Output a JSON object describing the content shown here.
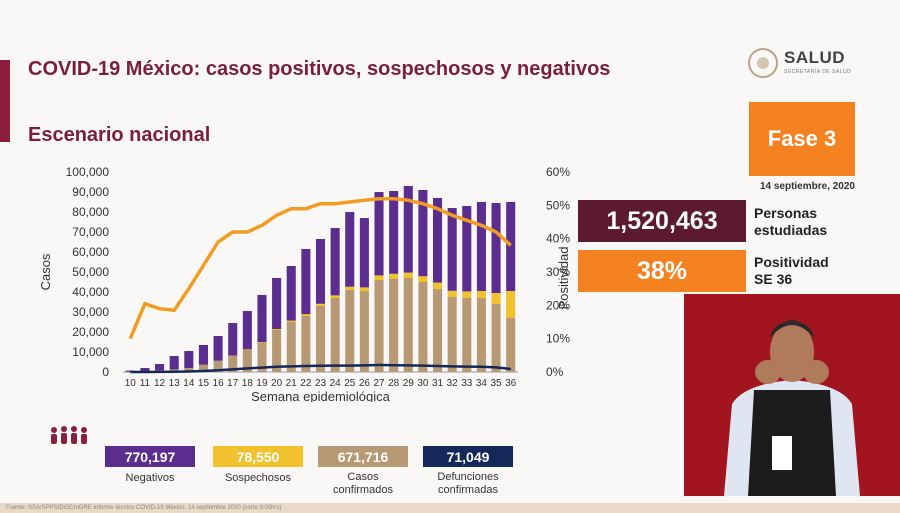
{
  "header": {
    "title": "COVID-19 México: casos positivos, sospechosos y negativos",
    "subtitle": "Escenario nacional",
    "logo_text": "SALUD",
    "logo_subtext": "SECRETARÍA DE SALUD"
  },
  "phase": {
    "label": "Fase 3",
    "date": "14 septiembre, 2020"
  },
  "kpis": [
    {
      "value": "1,520,463",
      "label": "Personas\nestudiadas"
    },
    {
      "value": "38%",
      "label": "Positividad\nSE 36"
    }
  ],
  "legend": [
    {
      "value": "770,197",
      "label": "Negativos",
      "color": "#5b2d8e"
    },
    {
      "value": "78,550",
      "label": "Sospechosos",
      "color": "#f2c12e"
    },
    {
      "value": "671,716",
      "label": "Casos\nconfirmados",
      "color": "#b79a73"
    },
    {
      "value": "71,049",
      "label": "Defunciones\nconfirmadas",
      "color": "#14285a"
    }
  ],
  "footer": "Fuente: SSA/SPPS/DGE/InDRE Informe técnico COVID-19 México. 14 septiembre 2020 (corte 9:00hrs)",
  "chart_data": {
    "type": "bar",
    "stacked": true,
    "xlabel": "Semana epidemiológica",
    "ylabel": "Casos",
    "y2label": "Positividad",
    "ylim": [
      0,
      100000
    ],
    "y2lim": [
      0,
      60
    ],
    "yticks": [
      "0",
      "10,000",
      "20,000",
      "30,000",
      "40,000",
      "50,000",
      "60,000",
      "70,000",
      "80,000",
      "90,000",
      "100,000"
    ],
    "y2ticks": [
      "0%",
      "10%",
      "20%",
      "30%",
      "40%",
      "50%",
      "60%"
    ],
    "categories": [
      "10",
      "11",
      "12",
      "13",
      "14",
      "15",
      "16",
      "17",
      "18",
      "19",
      "20",
      "21",
      "22",
      "23",
      "24",
      "25",
      "26",
      "27",
      "28",
      "29",
      "30",
      "31",
      "32",
      "33",
      "34",
      "35",
      "36"
    ],
    "series": [
      {
        "name": "Casos confirmados",
        "color": "#b79a73",
        "values": [
          100,
          400,
          800,
          1300,
          2000,
          3500,
          5500,
          8000,
          11000,
          14500,
          21000,
          25000,
          28000,
          33000,
          37000,
          41000,
          40500,
          46000,
          46500,
          47000,
          45000,
          41500,
          37500,
          37000,
          37000,
          34000,
          27000
        ]
      },
      {
        "name": "Sospechosos",
        "color": "#f2c12e",
        "values": [
          0,
          0,
          0,
          0,
          0,
          100,
          100,
          200,
          300,
          400,
          500,
          700,
          900,
          1100,
          1300,
          1600,
          1800,
          2300,
          2600,
          2700,
          2900,
          3200,
          3100,
          3300,
          3500,
          5500,
          13500
        ]
      },
      {
        "name": "Negativos",
        "color": "#5b2d8e",
        "values": [
          600,
          1600,
          3200,
          6700,
          8500,
          9900,
          12400,
          16300,
          19200,
          23600,
          25500,
          27300,
          32600,
          32400,
          33700,
          37400,
          34700,
          41700,
          41400,
          43300,
          43100,
          42300,
          41400,
          42700,
          44500,
          45000,
          44500
        ]
      },
      {
        "name": "Defunciones confirmadas",
        "color": "#14285a",
        "type": "line",
        "values": [
          0,
          20,
          60,
          120,
          250,
          500,
          900,
          1300,
          1800,
          2200,
          2600,
          2800,
          3000,
          3100,
          3200,
          3200,
          3300,
          3500,
          3400,
          3300,
          3200,
          3000,
          2800,
          2700,
          2600,
          2300,
          1500
        ]
      },
      {
        "name": "Positividad",
        "color": "#f39c22",
        "type": "line",
        "axis": "right",
        "values": [
          10,
          20.5,
          19,
          18.5,
          25,
          32,
          39,
          42,
          42,
          44,
          47,
          49,
          49,
          50.5,
          50.5,
          51,
          51.5,
          52,
          52,
          51.5,
          50.5,
          49,
          47,
          45.5,
          44,
          42,
          38
        ]
      }
    ]
  }
}
